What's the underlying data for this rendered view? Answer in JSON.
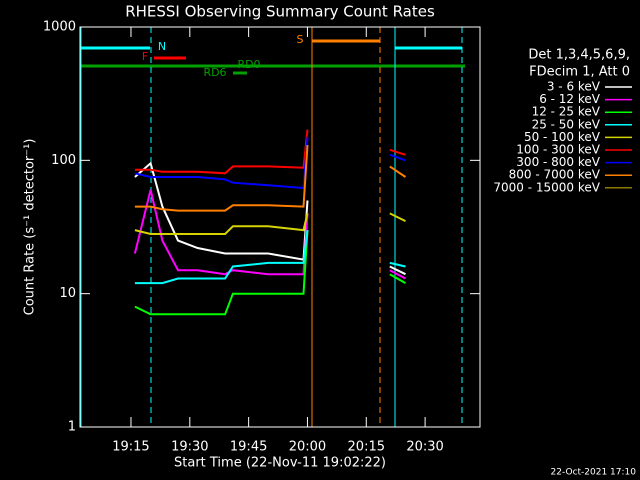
{
  "chart_data": {
    "type": "line",
    "title": "RHESSI Observing Summary Count Rates",
    "xlabel": "Start Time (22-Nov-11 19:02:22)",
    "ylabel": "Count Rate (s⁻¹ detector⁻¹)",
    "legend_header": [
      "Det 1,3,4,5,6,9,",
      "FDecim 1, Att 0"
    ],
    "footer": "22-Oct-2021 17:10",
    "log_y": true,
    "xlim": [
      "19:02",
      "20:44"
    ],
    "xticks": [
      "19:15",
      "19:30",
      "19:45",
      "20:00",
      "20:15",
      "20:30"
    ],
    "ylim": [
      1,
      1000
    ],
    "yticks": [
      1,
      10,
      100,
      1000
    ],
    "x": [
      "19:16",
      "19:20",
      "19:23",
      "19:27",
      "19:32",
      "19:39",
      "19:41",
      "19:50",
      "19:59",
      "20:00",
      "20:10",
      "20:21",
      "20:25"
    ],
    "series": [
      {
        "name": "3 - 6 keV",
        "color": "#ffffff",
        "values": [
          75,
          95,
          45,
          25,
          22,
          20,
          20,
          20,
          18,
          50,
          null,
          16,
          14
        ]
      },
      {
        "name": "6 - 12 keV",
        "color": "#ff00ff",
        "values": [
          20,
          60,
          25,
          15,
          15,
          14,
          15,
          14,
          14,
          40,
          null,
          15,
          13
        ]
      },
      {
        "name": "12 - 25 keV",
        "color": "#00ff00",
        "values": [
          8,
          7,
          7,
          7,
          7,
          7,
          10,
          10,
          10,
          30,
          null,
          14,
          12
        ]
      },
      {
        "name": "25 - 50 keV",
        "color": "#00ffff",
        "values": [
          12,
          12,
          12,
          13,
          13,
          13,
          16,
          17,
          17,
          30,
          null,
          17,
          16
        ]
      },
      {
        "name": "50 - 100 keV",
        "color": "#d4d400",
        "values": [
          30,
          28,
          28,
          28,
          28,
          28,
          32,
          32,
          30,
          40,
          null,
          40,
          35
        ]
      },
      {
        "name": "100 - 300 keV",
        "color": "#ff0000",
        "values": [
          85,
          85,
          82,
          82,
          82,
          80,
          90,
          90,
          88,
          170,
          null,
          120,
          110
        ]
      },
      {
        "name": "300 - 800 keV",
        "color": "#0000ff",
        "values": [
          80,
          75,
          75,
          75,
          75,
          72,
          68,
          65,
          62,
          150,
          null,
          110,
          100
        ]
      },
      {
        "name": "800 - 7000 keV",
        "color": "#ff8000",
        "values": [
          45,
          45,
          43,
          42,
          42,
          42,
          46,
          46,
          45,
          130,
          null,
          90,
          75
        ]
      },
      {
        "name": "7000 - 15000 keV",
        "color": "#8b7a00",
        "values": [
          null,
          null,
          null,
          null,
          null,
          null,
          null,
          null,
          null,
          null,
          null,
          null,
          null
        ]
      }
    ],
    "annotations": [
      {
        "text": "N",
        "color": "#00ffff"
      },
      {
        "text": "F",
        "color": "#ff0000"
      },
      {
        "text": "RD6",
        "color": "#00a000"
      },
      {
        "text": "RD0",
        "color": "#00a000"
      },
      {
        "text": "S",
        "color": "#ff8000"
      }
    ]
  }
}
